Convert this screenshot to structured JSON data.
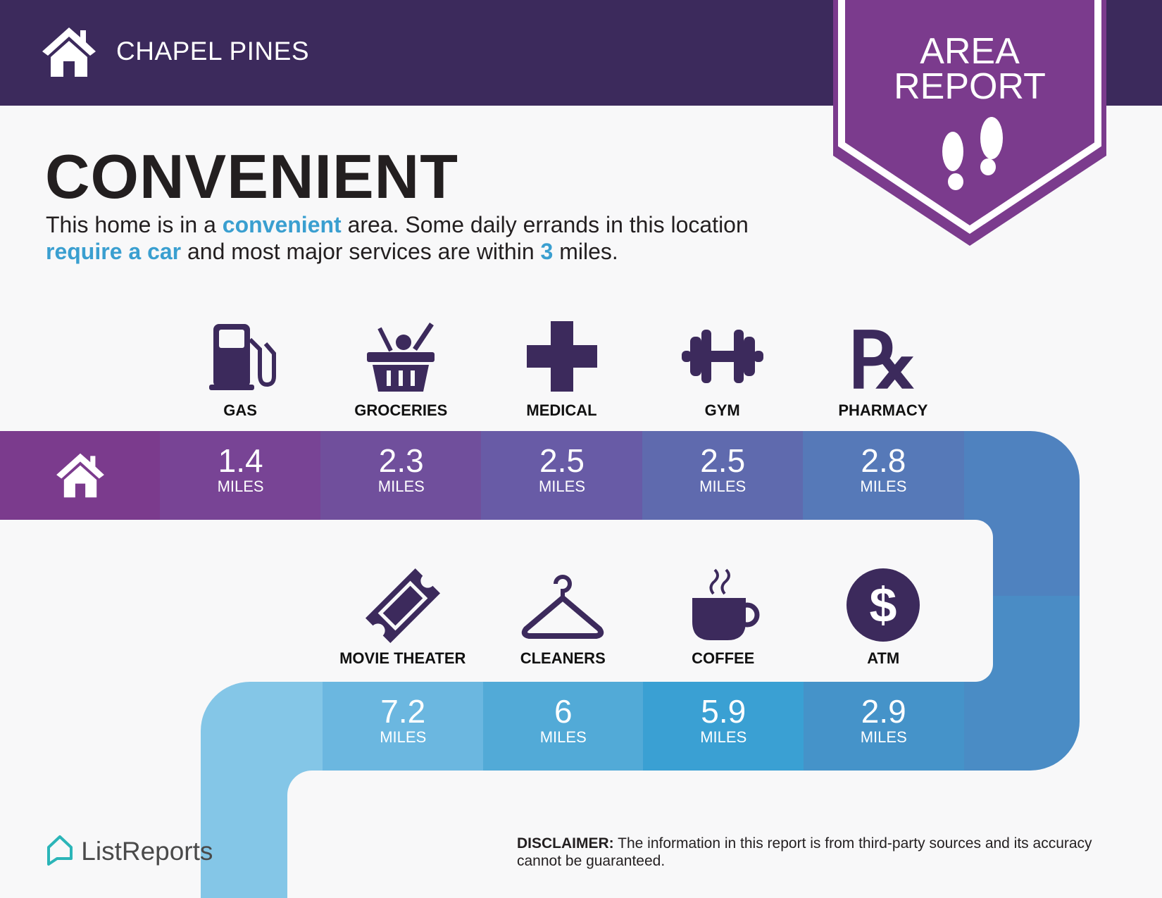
{
  "header": {
    "brand": "CHAPEL PINES",
    "badge_line1": "AREA",
    "badge_line2": "REPORT"
  },
  "headline": "CONVENIENT",
  "intro": [
    {
      "t": "This home is in a ",
      "hl": false
    },
    {
      "t": "convenient",
      "hl": true
    },
    {
      "t": " area. Some daily errands in this location ",
      "hl": false
    },
    {
      "t": "require a car",
      "hl": true
    },
    {
      "t": " and most major services are within ",
      "hl": false
    },
    {
      "t": "3",
      "hl": true
    },
    {
      "t": " miles.",
      "hl": false
    }
  ],
  "row1": [
    {
      "label": "GAS",
      "value": "1.4",
      "unit": "MILES",
      "icon": "gas-pump-icon",
      "color": "#784495"
    },
    {
      "label": "GROCERIES",
      "value": "2.3",
      "unit": "MILES",
      "icon": "grocery-basket-icon",
      "color": "#704f9c"
    },
    {
      "label": "MEDICAL",
      "value": "2.5",
      "unit": "MILES",
      "icon": "medical-cross-icon",
      "color": "#685ba6"
    },
    {
      "label": "GYM",
      "value": "2.5",
      "unit": "MILES",
      "icon": "dumbbell-icon",
      "color": "#5f6aae"
    },
    {
      "label": "PHARMACY",
      "value": "2.8",
      "unit": "MILES",
      "icon": "rx-icon",
      "color": "#5679b8"
    }
  ],
  "row2": [
    {
      "label": "MOVIE THEATER",
      "value": "7.2",
      "unit": "MILES",
      "icon": "ticket-icon",
      "color": "#6bb7e0"
    },
    {
      "label": "CLEANERS",
      "value": "6",
      "unit": "MILES",
      "icon": "hanger-icon",
      "color": "#52aad7"
    },
    {
      "label": "COFFEE",
      "value": "5.9",
      "unit": "MILES",
      "icon": "coffee-cup-icon",
      "color": "#3aa0d3"
    },
    {
      "label": "ATM",
      "value": "2.9",
      "unit": "MILES",
      "icon": "dollar-icon",
      "color": "#4593c9"
    }
  ],
  "colors": {
    "header": "#3c2a5c",
    "badge": "#7b3b8d",
    "home_cell": "#7b3b8d",
    "highlight": "#3a9fd0",
    "icon": "#3c2a5c"
  },
  "footer": {
    "logo": "ListReports",
    "disclaimer_bold": "DISCLAIMER:",
    "disclaimer": " The information in this report is from third-party sources and its accuracy cannot be guaranteed."
  }
}
